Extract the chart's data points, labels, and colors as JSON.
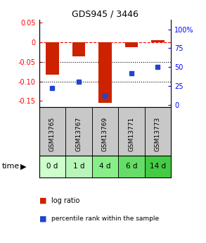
{
  "title": "GDS945 / 3446",
  "samples": [
    "GSM13765",
    "GSM13767",
    "GSM13769",
    "GSM13771",
    "GSM13773"
  ],
  "time_labels": [
    "0 d",
    "1 d",
    "4 d",
    "6 d",
    "14 d"
  ],
  "log_ratios": [
    -0.083,
    -0.036,
    -0.155,
    -0.012,
    0.005
  ],
  "percentile_ranks": [
    22,
    30,
    12,
    42,
    50
  ],
  "bar_color": "#cc2200",
  "dot_color": "#2244cc",
  "ylim_left": [
    -0.165,
    0.058
  ],
  "ylim_right": [
    -3,
    113
  ],
  "yticks_left": [
    0.05,
    0.0,
    -0.05,
    -0.1,
    -0.15
  ],
  "yticks_right": [
    100,
    75,
    50,
    25,
    0
  ],
  "gsm_bg_color": "#c8c8c8",
  "time_bg_colors": [
    "#ccffcc",
    "#b8f5b8",
    "#88ee88",
    "#66dd66",
    "#44cc44"
  ],
  "bar_width": 0.5,
  "x_positions": [
    1,
    2,
    3,
    4,
    5
  ],
  "legend_log_ratio_label": "log ratio",
  "legend_percentile_label": "percentile rank within the sample",
  "time_label": "time"
}
